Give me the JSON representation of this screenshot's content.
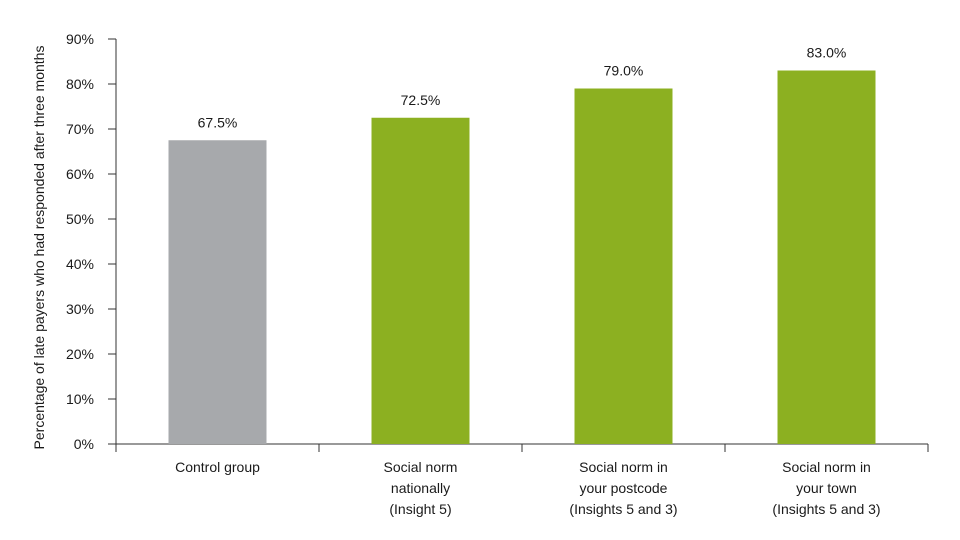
{
  "chart_data": {
    "type": "bar",
    "categories": [
      [
        "Control group"
      ],
      [
        "Social norm",
        "nationally",
        "(Insight 5)"
      ],
      [
        "Social norm in",
        "your postcode",
        "(Insights 5 and 3)"
      ],
      [
        "Social norm in",
        "your town",
        "(Insights 5 and 3)"
      ]
    ],
    "values": [
      67.5,
      72.5,
      79.0,
      83.0
    ],
    "data_labels": [
      "67.5%",
      "72.5%",
      "79.0%",
      "83.0%"
    ],
    "ylabel": "Percentage of late payers who had responded after three months",
    "xlabel": "",
    "ylim": [
      0,
      90
    ],
    "yticks": [
      0,
      10,
      20,
      30,
      40,
      50,
      60,
      70,
      80,
      90
    ],
    "ytick_labels": [
      "0%",
      "10%",
      "20%",
      "30%",
      "40%",
      "50%",
      "60%",
      "70%",
      "80%",
      "90%"
    ],
    "bar_colors": [
      "#a7a9ac",
      "#8cb021",
      "#8cb021",
      "#8cb021"
    ],
    "grid": false,
    "legend": "none"
  }
}
